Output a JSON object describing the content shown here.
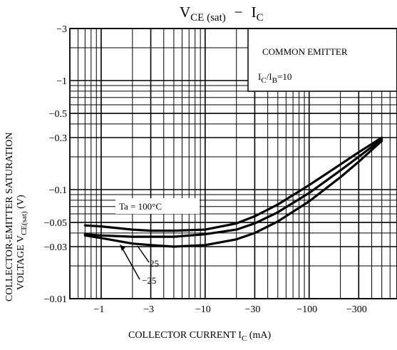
{
  "chart_data": {
    "type": "line",
    "title": {
      "main": "V",
      "main_sub": "CE (sat)",
      "dash": "−",
      "second": "I",
      "second_sub": "C"
    },
    "xlabel": {
      "text": "COLLECTOR CURRENT  I",
      "sub": "C",
      "unit": "  (mA)"
    },
    "ylabel": {
      "line1": "COLLECTOR-EMITTER SATURATION",
      "line2_prefix": "VOLTAGE   V",
      "line2_sub": "CE(sat)",
      "line2_unit": "   (V)"
    },
    "x_scale": "log",
    "y_scale": "log",
    "xlim": [
      -0.5,
      -700
    ],
    "ylim": [
      -0.01,
      -3
    ],
    "x_ticks": [
      -1,
      -3,
      -10,
      -30,
      -100,
      -300
    ],
    "x_tick_labels": [
      "−1",
      "−3",
      "−10",
      "−30",
      "−100",
      "−300"
    ],
    "y_ticks": [
      -3,
      -1,
      -0.5,
      -0.3,
      -0.1,
      -0.05,
      -0.03,
      -0.01
    ],
    "y_tick_labels": [
      "−3",
      "−1",
      "−0.5",
      "−0.3",
      "−0.1",
      "−0.05",
      "−0.03",
      "−0.01"
    ],
    "grid": true,
    "annotations": {
      "common_emitter": "COMMON EMITTER",
      "ratio_prefix": "I",
      "ratio_sub1": "C",
      "ratio_mid": "/I",
      "ratio_sub2": "B",
      "ratio_value": "=10",
      "ta_label": "Ta = 100°C",
      "label_25": "25",
      "label_m25": "−25"
    },
    "series": [
      {
        "x": [
          -0.7,
          -1,
          -2,
          -3,
          -5,
          -10,
          -20,
          -30,
          -50,
          -100,
          -200,
          -300,
          -500
        ],
        "y": [
          -0.047,
          -0.046,
          -0.043,
          -0.042,
          -0.042,
          -0.043,
          -0.049,
          -0.057,
          -0.073,
          -0.11,
          -0.17,
          -0.22,
          -0.3
        ]
      },
      {
        "x": [
          -0.7,
          -1,
          -2,
          -3,
          -5,
          -10,
          -20,
          -30,
          -50,
          -100,
          -200,
          -300,
          -500
        ],
        "y": [
          -0.039,
          -0.038,
          -0.037,
          -0.037,
          -0.037,
          -0.039,
          -0.043,
          -0.049,
          -0.062,
          -0.093,
          -0.15,
          -0.2,
          -0.29
        ]
      },
      {
        "x": [
          -0.7,
          -1,
          -2,
          -3,
          -5,
          -10,
          -20,
          -30,
          -50,
          -100,
          -200,
          -300,
          -500
        ],
        "y": [
          -0.038,
          -0.036,
          -0.032,
          -0.031,
          -0.03,
          -0.031,
          -0.035,
          -0.04,
          -0.051,
          -0.078,
          -0.13,
          -0.18,
          -0.28
        ]
      }
    ]
  }
}
